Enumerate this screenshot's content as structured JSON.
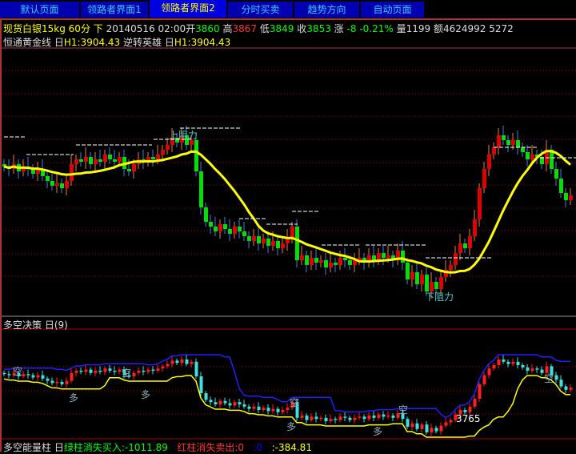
{
  "tabs": [
    "默认页面",
    "领路者界面1",
    "领路者界面2",
    "分时买卖",
    "趋势方向",
    "自动页面"
  ],
  "active_tab": 2,
  "quote": {
    "symbol": "现货白银15kg",
    "period": "60分",
    "dir": "下",
    "datetime": "20140516 02:00",
    "open_label": "开",
    "open": "3860",
    "high_label": "高",
    "high": "3867",
    "low_label": "低",
    "low": "3849",
    "close_label": "收",
    "close": "3853",
    "chg_label": "涨",
    "chg": "-8",
    "pct": "-0.21%",
    "vol_label": "量",
    "vol": "1199",
    "amt_label": "额",
    "amt": "4624992",
    "extra": "5272"
  },
  "main_indicator": {
    "name": "恒通黄金线",
    "box": "日",
    "v1": "H1:3904.43",
    "name2": "逆转英雄",
    "box2": "日",
    "v2": "H1:3904.43",
    "upper_label": "上阻力",
    "lower_label": "下阻力"
  },
  "sub_indicator": {
    "name": "多空决策",
    "param": "日(9)",
    "marker_short": "空",
    "marker_long": "多",
    "price_tag": "3765"
  },
  "bottom_indicator": {
    "name": "多空能量柱",
    "box": "日",
    "green": "绿柱消失买入:-1011.89",
    "red": "红柱消失卖出:0",
    "blue": ":0",
    "yellow": ":-384.81"
  },
  "colors": {
    "up": "#e00000",
    "down": "#00e000",
    "ma": "#ffff00",
    "sub_up": "#ff2020",
    "sub_down": "#40e0e0",
    "grid": "#a00000"
  },
  "chart_data": {
    "type": "candlestick",
    "closes": [
      3867,
      3866,
      3868,
      3865,
      3867,
      3866,
      3864,
      3866,
      3863,
      3861,
      3859,
      3860,
      3858,
      3861,
      3868,
      3870,
      3869,
      3871,
      3868,
      3870,
      3869,
      3872,
      3870,
      3869,
      3871,
      3866,
      3865,
      3868,
      3870,
      3869,
      3871,
      3870,
      3872,
      3874,
      3876,
      3879,
      3877,
      3880,
      3876,
      3878,
      3865,
      3850,
      3844,
      3842,
      3840,
      3843,
      3841,
      3839,
      3842,
      3840,
      3838,
      3836,
      3838,
      3835,
      3837,
      3834,
      3836,
      3833,
      3835,
      3837,
      3842,
      3828,
      3830,
      3826,
      3829,
      3827,
      3828,
      3825,
      3827,
      3826,
      3829,
      3828,
      3826,
      3828,
      3829,
      3827,
      3830,
      3828,
      3831,
      3829,
      3830,
      3828,
      3832,
      3827,
      3820,
      3823,
      3818,
      3822,
      3815,
      3819,
      3816,
      3821,
      3824,
      3826,
      3831,
      3835,
      3833,
      3838,
      3845,
      3858,
      3866,
      3872,
      3875,
      3880,
      3878,
      3876,
      3878,
      3875,
      3873,
      3870,
      3872,
      3871,
      3868,
      3874,
      3866,
      3862,
      3856,
      3853,
      3855
    ]
  }
}
